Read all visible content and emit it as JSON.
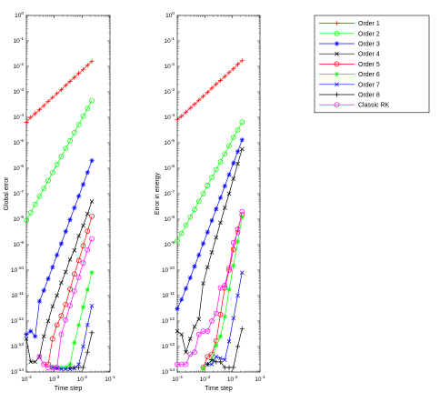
{
  "chart_data": [
    {
      "type": "line",
      "title": "",
      "xlabel": "Time step",
      "ylabel": "Global error",
      "xscale": "log",
      "yscale": "log",
      "xlim": [
        0.0001,
        0.1
      ],
      "ylim": [
        1e-14,
        1
      ],
      "grid": false,
      "x_ticks": [
        "10^-4",
        "10^-3",
        "10^-2",
        "10^-1"
      ],
      "y_ticks": [
        "10^-14",
        "10^-13",
        "10^-12",
        "10^-11",
        "10^-10",
        "10^-9",
        "10^-8",
        "10^-7",
        "10^-6",
        "10^-5",
        "10^-4",
        "10^-3",
        "10^-2",
        "10^-1",
        "10^0"
      ],
      "series": [
        {
          "name": "Order 1",
          "x": [
            0.0001,
            0.000143,
            0.000206,
            0.000295,
            0.000423,
            0.000607,
            0.00087,
            0.00125,
            0.00179,
            0.00257,
            0.00368,
            0.00528,
            0.00758,
            0.0109,
            0.0156,
            0.0224
          ],
          "y": [
            6.3e-05,
            0.0001,
            0.00014,
            0.0002,
            0.00029,
            0.00042,
            0.0006,
            0.00086,
            0.0012,
            0.0018,
            0.0026,
            0.0037,
            0.0053,
            0.0076,
            0.011,
            0.016
          ]
        },
        {
          "name": "Order 2",
          "x": [
            0.0001,
            0.000143,
            0.000206,
            0.000295,
            0.000423,
            0.000607,
            0.00087,
            0.00125,
            0.00179,
            0.00257,
            0.00368,
            0.00528,
            0.00758,
            0.0109,
            0.0156,
            0.0224
          ],
          "y": [
            9e-09,
            1.8e-08,
            3.8e-08,
            7.8e-08,
            1.6e-07,
            3.3e-07,
            6.8e-07,
            1.4e-06,
            2.9e-06,
            6e-06,
            1.2e-05,
            2.5e-05,
            5.2e-05,
            0.00011,
            0.00022,
            0.00045
          ]
        },
        {
          "name": "Order 3",
          "x": [
            0.0001,
            0.000143,
            0.000206,
            0.000295,
            0.000423,
            0.000607,
            0.00087,
            0.00125,
            0.00179,
            0.00257,
            0.00368,
            0.00528,
            0.00758,
            0.0109,
            0.0156,
            0.0224
          ],
          "y": [
            3e-13,
            4e-13,
            2.5e-13,
            6e-12,
            1.6e-11,
            4.6e-11,
            1.3e-10,
            3.9e-10,
            1.1e-09,
            3.3e-09,
            9.5e-09,
            2.8e-08,
            8e-08,
            2.3e-07,
            6.8e-07,
            2e-06
          ]
        },
        {
          "name": "Order 4",
          "x": [
            0.0001,
            0.000143,
            0.000206,
            0.000295,
            0.000423,
            0.000607,
            0.00087,
            0.00125,
            0.00179,
            0.00257,
            0.00368,
            0.00528,
            0.00758,
            0.0109,
            0.0156,
            0.0224
          ],
          "y": [
            2e-13,
            2.5e-14,
            2.5e-14,
            4e-14,
            2.5e-13,
            1e-12,
            3.8e-12,
            1e-11,
            3.2e-11,
            8.5e-11,
            2.6e-10,
            6e-10,
            2.2e-09,
            5.6e-09,
            1.6e-08,
            5e-08
          ]
        },
        {
          "name": "Order 5",
          "x": [
            0.000423,
            0.000607,
            0.00087,
            0.00125,
            0.00179,
            0.00257,
            0.00368,
            0.00528,
            0.00758,
            0.0109,
            0.0156,
            0.0224
          ],
          "y": [
            2e-14,
            2e-14,
            2e-13,
            7e-13,
            1.6e-12,
            4.5e-12,
            1.8e-11,
            7e-11,
            2.4e-10,
            9e-10,
            3.4e-09,
            1.3e-08
          ]
        },
        {
          "name": "Order 6",
          "x": [
            0.00087,
            0.00125,
            0.00179,
            0.00257,
            0.00368,
            0.00528,
            0.00758,
            0.0109,
            0.0156,
            0.0224
          ],
          "y": [
            1.5e-14,
            1.5e-14,
            1.5e-14,
            1.5e-14,
            2e-14,
            1.4e-13,
            7e-13,
            3.5e-12,
            1.7e-11,
            8e-11
          ]
        },
        {
          "name": "Order 7",
          "x": [
            0.00087,
            0.00125,
            0.00179,
            0.00257,
            0.00368,
            0.00528,
            0.00758,
            0.0109,
            0.0156,
            0.0224
          ],
          "y": [
            1.5e-14,
            1.4e-14,
            1.3e-14,
            1.3e-14,
            1.3e-14,
            1.4e-14,
            2e-14,
            1e-13,
            7e-13,
            4e-12
          ]
        },
        {
          "name": "Order 8",
          "x": [
            0.00368,
            0.00528,
            0.00758,
            0.0109,
            0.0156,
            0.0224
          ],
          "y": [
            1.5e-14,
            1.5e-14,
            1.5e-14,
            1.5e-14,
            6e-14,
            3.5e-13
          ]
        },
        {
          "name": "Classic RK",
          "x": [
            0.000295,
            0.000423,
            0.000607,
            0.00087,
            0.00125,
            0.00179,
            0.00257,
            0.00368,
            0.00528,
            0.00758,
            0.0109,
            0.0156,
            0.0224
          ],
          "y": [
            4e-14,
            2e-14,
            1.5e-14,
            1.5e-14,
            1.5e-14,
            3e-13,
            1.1e-12,
            4e-12,
            1.5e-11,
            5.2e-11,
            1.9e-10,
            6.2e-10,
            1.7e-09
          ]
        }
      ]
    },
    {
      "type": "line",
      "title": "",
      "xlabel": "Time step",
      "ylabel": "Error in energy",
      "xscale": "log",
      "yscale": "log",
      "xlim": [
        0.0001,
        0.1
      ],
      "ylim": [
        1e-14,
        1
      ],
      "grid": false,
      "x_ticks": [
        "10^-4",
        "10^-3",
        "10^-2",
        "10^-1"
      ],
      "y_ticks": [
        "10^-14",
        "10^-13",
        "10^-12",
        "10^-11",
        "10^-10",
        "10^-9",
        "10^-8",
        "10^-7",
        "10^-6",
        "10^-5",
        "10^-4",
        "10^-3",
        "10^-2",
        "10^-1",
        "10^0"
      ],
      "series": [
        {
          "name": "Order 1",
          "x": [
            0.0001,
            0.000143,
            0.000206,
            0.000295,
            0.000423,
            0.000607,
            0.00087,
            0.00125,
            0.00179,
            0.00257,
            0.00368,
            0.00528,
            0.00758,
            0.0109,
            0.0156,
            0.0224
          ],
          "y": [
            8e-05,
            0.00011,
            0.00016,
            0.00023,
            0.00033,
            0.00047,
            0.00067,
            0.00095,
            0.0014,
            0.002,
            0.0028,
            0.004,
            0.0057,
            0.0081,
            0.012,
            0.017
          ]
        },
        {
          "name": "Order 2",
          "x": [
            0.0001,
            0.000143,
            0.000206,
            0.000295,
            0.000423,
            0.000607,
            0.00087,
            0.00125,
            0.00179,
            0.00257,
            0.00368,
            0.00528,
            0.00758,
            0.0109,
            0.0156,
            0.0224
          ],
          "y": [
            1.4e-09,
            2.8e-09,
            5.8e-09,
            1.2e-08,
            2.4e-08,
            5e-08,
            1e-07,
            2.1e-07,
            4.3e-07,
            8.9e-07,
            1.8e-06,
            3.7e-06,
            7.6e-06,
            1.6e-05,
            3.2e-05,
            6.5e-05
          ]
        },
        {
          "name": "Order 3",
          "x": [
            0.0001,
            0.000143,
            0.000206,
            0.000295,
            0.000423,
            0.000607,
            0.00087,
            0.00125,
            0.00179,
            0.00257,
            0.00368,
            0.00528,
            0.00758,
            0.0109,
            0.0156,
            0.0224
          ],
          "y": [
            3e-12,
            7e-12,
            1.9e-11,
            5e-11,
            1.4e-10,
            3.9e-10,
            1.1e-09,
            3.1e-09,
            8.8e-09,
            2.5e-08,
            7e-08,
            2e-07,
            5.6e-07,
            1.6e-06,
            4.5e-06,
            1.3e-05
          ]
        },
        {
          "name": "Order 4",
          "x": [
            0.0001,
            0.000143,
            0.000206,
            0.000295,
            0.000423,
            0.000607,
            0.00087,
            0.00125,
            0.00179,
            0.00257,
            0.00368,
            0.00528,
            0.00758,
            0.0109,
            0.0156,
            0.0224
          ],
          "y": [
            4e-13,
            3e-13,
            6e-14,
            2e-13,
            6e-13,
            1.2e-12,
            3e-11,
            1.3e-10,
            5e-10,
            1.9e-09,
            7.3e-09,
            2.8e-08,
            1e-07,
            3.9e-07,
            1.5e-06,
            5.7e-06
          ]
        },
        {
          "name": "Order 5",
          "x": [
            0.00087,
            0.00125,
            0.00179,
            0.00257,
            0.00368,
            0.00528,
            0.00758,
            0.0109,
            0.0156,
            0.0224
          ],
          "y": [
            1.5e-14,
            4e-14,
            5e-14,
            1.7e-13,
            1.8e-12,
            2e-11,
            1e-10,
            6.5e-10,
            4e-09,
            1.5e-08
          ]
        },
        {
          "name": "Order 6",
          "x": [
            0.00087,
            0.00125,
            0.00179,
            0.00257,
            0.00368,
            0.00528,
            0.00758,
            0.0109,
            0.0156,
            0.0224
          ],
          "y": [
            1.4e-14,
            2e-14,
            3e-14,
            1.1e-13,
            2.5e-13,
            1.5e-12,
            1.7e-11,
            1.5e-10,
            1.3e-09,
            1.2e-08
          ]
        },
        {
          "name": "Order 7",
          "x": [
            0.00125,
            0.00179,
            0.00257,
            0.00368,
            0.00528,
            0.00758,
            0.0109,
            0.0156,
            0.0224
          ],
          "y": [
            2e-14,
            2e-14,
            4e-14,
            3.5e-14,
            3e-14,
            1.6e-13,
            1.3e-12,
            1e-11,
            8e-11
          ]
        },
        {
          "name": "Order 8",
          "x": [
            0.00125,
            0.00179,
            0.00257,
            0.00368,
            0.00528,
            0.00758,
            0.0109,
            0.0156,
            0.0224
          ],
          "y": [
            2e-14,
            3e-14,
            2.5e-14,
            2.5e-14,
            1.5e-14,
            1.5e-14,
            1.5e-14,
            1e-13,
            5e-13
          ]
        },
        {
          "name": "Classic RK",
          "x": [
            0.0001,
            0.000143,
            0.000206,
            0.000295,
            0.000423,
            0.000607,
            0.00087,
            0.00125,
            0.00179,
            0.00257,
            0.00368,
            0.00528,
            0.00758,
            0.0109,
            0.0156,
            0.0224
          ],
          "y": [
            2e-14,
            2e-14,
            2e-14,
            5e-14,
            6e-14,
            3e-13,
            4e-13,
            4e-13,
            1e-12,
            2e-12,
            2e-11,
            2.5e-11,
            1.2e-10,
            1.2e-09,
            3e-09,
            2e-08
          ]
        }
      ]
    }
  ],
  "legend": {
    "placement": "right",
    "entries": [
      {
        "label": "Order 1",
        "color": "#ff0000",
        "marker": "plus"
      },
      {
        "label": "Order 2",
        "color": "#00ff00",
        "marker": "circle"
      },
      {
        "label": "Order 3",
        "color": "#0000ff",
        "marker": "asterisk"
      },
      {
        "label": "Order 4",
        "color": "#000000",
        "marker": "cross"
      },
      {
        "label": "Order 5",
        "color": "#ff0000",
        "marker": "circle"
      },
      {
        "label": "Order 6",
        "color": "#00ff00",
        "marker": "asterisk"
      },
      {
        "label": "Order 7",
        "color": "#0000ff",
        "marker": "cross"
      },
      {
        "label": "Order 8",
        "color": "#000000",
        "marker": "plus"
      },
      {
        "label": "Classic RK",
        "color": "#ff00ff",
        "marker": "circle"
      }
    ]
  }
}
